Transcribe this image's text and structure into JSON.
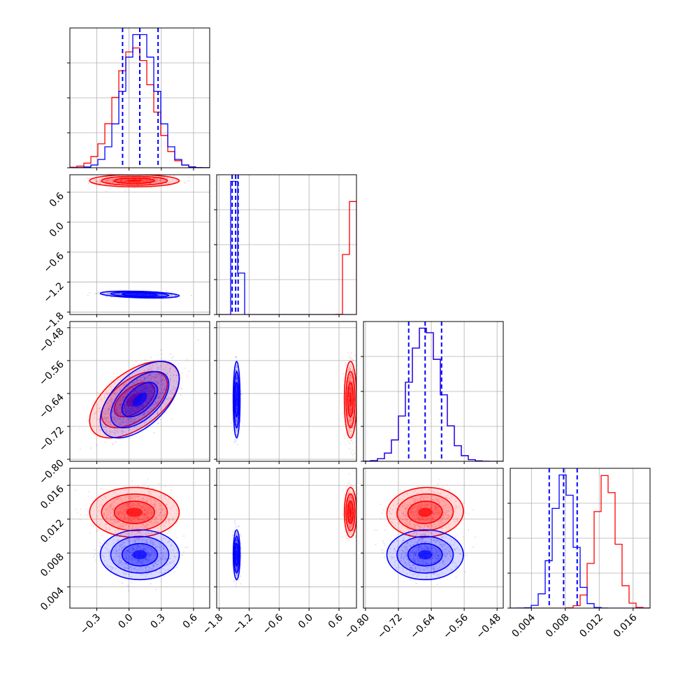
{
  "chart_data": {
    "type": "corner",
    "title": "",
    "colors": {
      "series_a": "#ff0000",
      "series_b": "#0000ff",
      "grid": "#b0b0b0"
    },
    "series": [
      {
        "color": "red",
        "means": [
          0.05,
          0.83,
          -0.655,
          0.0128
        ],
        "sds": [
          0.17,
          0.05,
          0.038,
          0.0012
        ],
        "corr": {
          "0-2": 0.55,
          "2-3": 0.05
        }
      },
      {
        "color": "blue",
        "means": [
          0.1,
          -1.45,
          -0.655,
          0.0078
        ],
        "sds": [
          0.15,
          0.028,
          0.038,
          0.0012
        ],
        "corr": {
          "0-2": 0.55,
          "0-1": -0.35
        }
      }
    ],
    "quantile_lines": [
      [
        -0.06,
        0.1,
        0.27
      ],
      [
        -1.54,
        -1.47,
        -1.42
      ],
      [
        -0.695,
        -0.655,
        -0.615
      ],
      [
        0.0061,
        0.0078,
        0.0094
      ]
    ],
    "axes": [
      {
        "range": [
          -0.55,
          0.75
        ],
        "ticks": [
          -0.3,
          0.0,
          0.3,
          0.6
        ],
        "tick_labels": [
          "−0.3",
          "0.0",
          "0.3",
          "0.6"
        ]
      },
      {
        "range": [
          -1.85,
          0.95
        ],
        "ticks": [
          -1.8,
          -1.2,
          -0.6,
          0.0,
          0.6
        ],
        "tick_labels": [
          "−1.8",
          "−1.2",
          "−0.6",
          "0.0",
          "0.6"
        ]
      },
      {
        "range": [
          -0.805,
          -0.465
        ],
        "ticks": [
          -0.8,
          -0.72,
          -0.64,
          -0.56,
          -0.48
        ],
        "tick_labels": [
          "−0.80",
          "−0.72",
          "−0.64",
          "−0.56",
          "−0.48"
        ]
      },
      {
        "range": [
          0.0015,
          0.018
        ],
        "ticks": [
          0.004,
          0.008,
          0.012,
          0.016
        ],
        "tick_labels": [
          "0.004",
          "0.008",
          "0.012",
          "0.016"
        ]
      }
    ],
    "grid": true,
    "legend": "none"
  }
}
